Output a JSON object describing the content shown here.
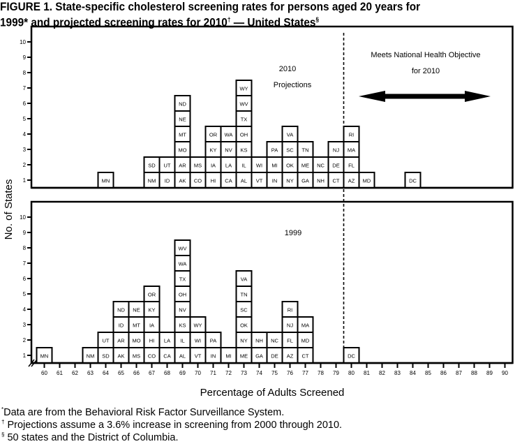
{
  "title": {
    "line1": "FIGURE 1. State-specific cholesterol screening rates for persons aged   20 years for",
    "line2_a": "1999",
    "line2_b": "* and projected screening rates for 2010",
    "line2_c": "†",
    "line2_d": " — United States",
    "line2_e": "§"
  },
  "chart_data": [
    {
      "type": "bar",
      "subtype": "stacked-unit-histogram",
      "panel": "top",
      "annotations": [
        "2010",
        "Projections"
      ],
      "objective_label": [
        "Meets National Health Objective",
        "for 2010"
      ],
      "objective_threshold": 79.5,
      "xlim": [
        59,
        90
      ],
      "ylim": [
        0,
        10
      ],
      "yticks": [
        1,
        2,
        3,
        4,
        5,
        6,
        7,
        8,
        9,
        10
      ],
      "bins": [
        {
          "x": 64,
          "states": [
            "MN"
          ]
        },
        {
          "x": 67,
          "states": [
            "NM",
            "SD"
          ]
        },
        {
          "x": 68,
          "states": [
            "ID",
            "UT"
          ]
        },
        {
          "x": 69,
          "states": [
            "AK",
            "AR",
            "MO",
            "MT",
            "NE",
            "ND"
          ]
        },
        {
          "x": 70,
          "states": [
            "CO",
            "MS"
          ]
        },
        {
          "x": 71,
          "states": [
            "HI",
            "IA",
            "KY",
            "OR"
          ]
        },
        {
          "x": 72,
          "states": [
            "CA",
            "LA",
            "NV",
            "WA"
          ]
        },
        {
          "x": 73,
          "states": [
            "AL",
            "IL",
            "KS",
            "OH",
            "TX",
            "WV",
            "WY"
          ]
        },
        {
          "x": 74,
          "states": [
            "VT",
            "WI"
          ]
        },
        {
          "x": 75,
          "states": [
            "IN",
            "MI",
            "PA"
          ]
        },
        {
          "x": 76,
          "states": [
            "NY",
            "OK",
            "SC",
            "VA"
          ]
        },
        {
          "x": 77,
          "states": [
            "GA",
            "ME",
            "TN"
          ]
        },
        {
          "x": 78,
          "states": [
            "NH",
            "NC"
          ]
        },
        {
          "x": 79,
          "states": [
            "CT",
            "DE",
            "NJ"
          ]
        },
        {
          "x": 80,
          "states": [
            "AZ",
            "FL",
            "MA",
            "RI"
          ]
        },
        {
          "x": 81,
          "states": [
            "MD"
          ]
        },
        {
          "x": 84,
          "states": [
            "DC"
          ]
        }
      ]
    },
    {
      "type": "bar",
      "subtype": "stacked-unit-histogram",
      "panel": "bottom",
      "annotations": [
        "1999"
      ],
      "xlim": [
        59,
        90
      ],
      "ylim": [
        0,
        10
      ],
      "yticks": [
        1,
        2,
        3,
        4,
        5,
        6,
        7,
        8,
        9,
        10
      ],
      "xticks": [
        60,
        61,
        62,
        63,
        64,
        65,
        66,
        67,
        68,
        69,
        70,
        71,
        72,
        73,
        74,
        75,
        76,
        77,
        78,
        79,
        80,
        81,
        82,
        83,
        84,
        85,
        86,
        87,
        88,
        89,
        90
      ],
      "bins": [
        {
          "x": 60,
          "states": [
            "MN"
          ]
        },
        {
          "x": 63,
          "states": [
            "NM"
          ]
        },
        {
          "x": 64,
          "states": [
            "SD",
            "UT"
          ]
        },
        {
          "x": 65,
          "states": [
            "AK",
            "AR",
            "ID",
            "ND"
          ]
        },
        {
          "x": 66,
          "states": [
            "MS",
            "MO",
            "MT",
            "NE"
          ]
        },
        {
          "x": 67,
          "states": [
            "CO",
            "HI",
            "IA",
            "KY",
            "OR"
          ]
        },
        {
          "x": 68,
          "states": [
            "CA",
            "LA"
          ]
        },
        {
          "x": 69,
          "states": [
            "AL",
            "IL",
            "KS",
            "NV",
            "OH",
            "TX",
            "WA",
            "WV"
          ]
        },
        {
          "x": 70,
          "states": [
            "VT",
            "WI",
            "WY"
          ]
        },
        {
          "x": 71,
          "states": [
            "IN",
            "PA"
          ]
        },
        {
          "x": 72,
          "states": [
            "MI"
          ]
        },
        {
          "x": 73,
          "states": [
            "ME",
            "NY",
            "OK",
            "SC",
            "TN",
            "VA"
          ]
        },
        {
          "x": 74,
          "states": [
            "GA",
            "NH"
          ]
        },
        {
          "x": 75,
          "states": [
            "DE",
            "NC"
          ]
        },
        {
          "x": 76,
          "states": [
            "AZ",
            "FL",
            "NJ",
            "RI"
          ]
        },
        {
          "x": 77,
          "states": [
            "CT",
            "MD",
            "MA"
          ]
        },
        {
          "x": 80,
          "states": [
            "DC"
          ]
        }
      ]
    }
  ],
  "axes": {
    "ylabel": "No. of States",
    "xlabel": "Percentage of Adults Screened"
  },
  "footnotes": [
    {
      "mark": "*",
      "text": "Data are from the Behavioral Risk Factor Surveillance System."
    },
    {
      "mark": "†",
      "text": " Projections assume a 3.6% increase in screening from 2000 through 2010."
    },
    {
      "mark": "§",
      "text": " 50 states and the District of Columbia."
    }
  ]
}
